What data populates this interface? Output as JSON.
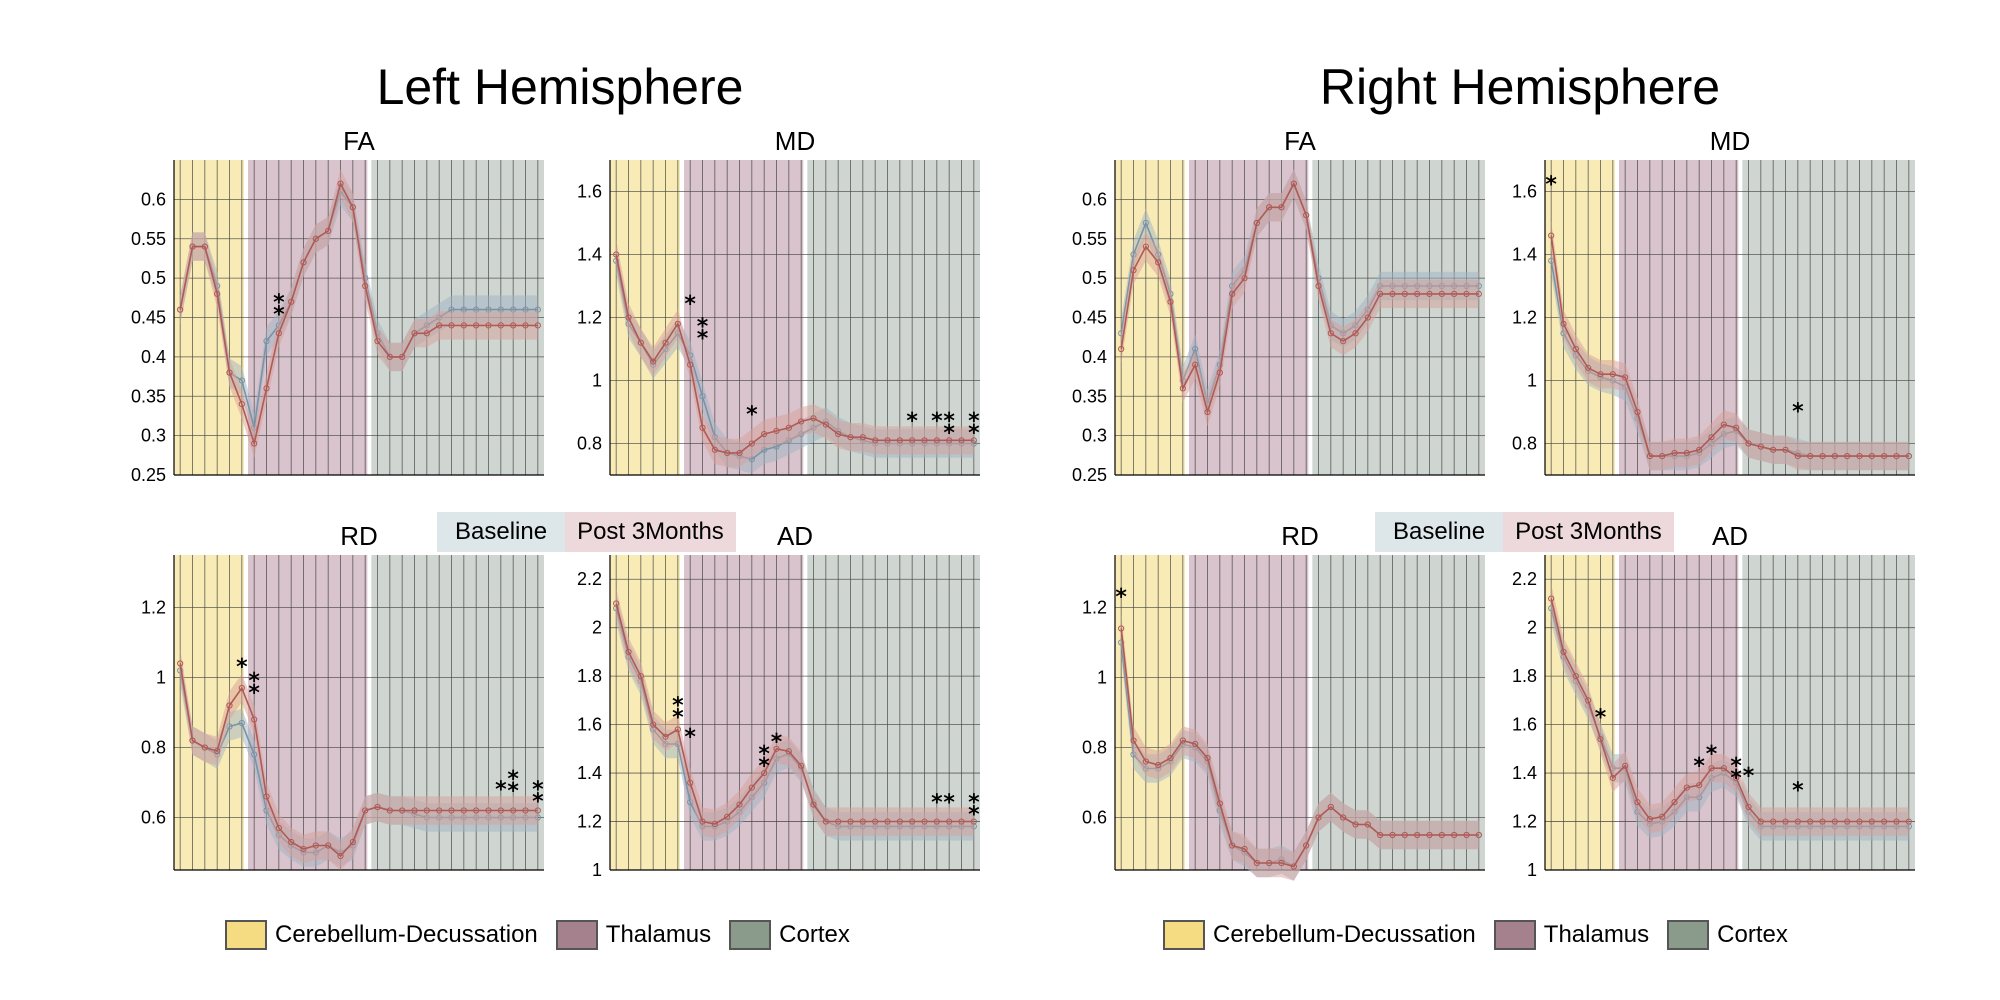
{
  "colors": {
    "cerebellum": "#f9ebb5",
    "thalamus": "#d9c3cd",
    "cortex": "#cfd6d1",
    "cerebellum_swatch": "#f5dc82",
    "thalamus_swatch": "#a4818d",
    "cortex_swatch": "#8a9a8b",
    "baseline_line": "#7a93a6",
    "baseline_band": "#9fb4c3",
    "post_line": "#b05a55",
    "post_band": "#d8a09a",
    "legend_baseline_bg": "#dde6e9",
    "legend_post_bg": "#edd9dc"
  },
  "hemispheres": [
    {
      "title": "Left Hemisphere"
    },
    {
      "title": "Right Hemisphere"
    }
  ],
  "series_legend": {
    "baseline": "Baseline",
    "post": "Post 3Months"
  },
  "region_legend": [
    "Cerebellum-Decussation",
    "Thalamus",
    "Cortex"
  ],
  "chart_data": [
    {
      "type": "line",
      "hemisphere": "Left Hemisphere",
      "title": "FA",
      "ylim": [
        0.25,
        0.65
      ],
      "yticks": [
        0.25,
        0.3,
        0.35,
        0.4,
        0.45,
        0.5,
        0.55,
        0.6
      ],
      "ytick_labels": [
        "0.25",
        "0.3",
        "0.35",
        "0.4",
        "0.45",
        "0.5",
        "0.55",
        "0.6"
      ],
      "n_points": 30,
      "regions": [
        [
          1,
          6
        ],
        [
          7,
          16
        ],
        [
          17,
          30
        ]
      ],
      "series": [
        {
          "name": "Baseline",
          "values": [
            0.46,
            0.54,
            0.54,
            0.49,
            0.38,
            0.37,
            0.31,
            0.42,
            0.44,
            0.47,
            0.52,
            0.55,
            0.56,
            0.61,
            0.59,
            0.5,
            0.43,
            0.4,
            0.4,
            0.43,
            0.44,
            0.45,
            0.46,
            0.46,
            0.46,
            0.46,
            0.46,
            0.46,
            0.46,
            0.46
          ]
        },
        {
          "name": "Post 3Months",
          "values": [
            0.46,
            0.54,
            0.54,
            0.48,
            0.38,
            0.34,
            0.29,
            0.36,
            0.43,
            0.47,
            0.52,
            0.55,
            0.56,
            0.62,
            0.59,
            0.49,
            0.42,
            0.4,
            0.4,
            0.43,
            0.43,
            0.44,
            0.44,
            0.44,
            0.44,
            0.44,
            0.44,
            0.44,
            0.44,
            0.44
          ]
        }
      ],
      "annotations": [
        {
          "x": 9,
          "y": 0.46,
          "text": "**"
        }
      ]
    },
    {
      "type": "line",
      "hemisphere": "Left Hemisphere",
      "title": "MD",
      "ylim": [
        0.7,
        1.7
      ],
      "yticks": [
        0.8,
        1.0,
        1.2,
        1.4,
        1.6
      ],
      "ytick_labels": [
        "0.8",
        "1",
        "1.2",
        "1.4",
        "1.6"
      ],
      "n_points": 30,
      "regions": [
        [
          1,
          6
        ],
        [
          7,
          16
        ],
        [
          17,
          30
        ]
      ],
      "series": [
        {
          "name": "Baseline",
          "values": [
            1.38,
            1.18,
            1.12,
            1.05,
            1.1,
            1.15,
            1.08,
            0.95,
            0.82,
            0.77,
            0.76,
            0.75,
            0.78,
            0.79,
            0.81,
            0.83,
            0.85,
            0.87,
            0.84,
            0.82,
            0.81,
            0.8,
            0.8,
            0.8,
            0.8,
            0.8,
            0.8,
            0.8,
            0.8,
            0.8
          ]
        },
        {
          "name": "Post 3Months",
          "values": [
            1.4,
            1.2,
            1.12,
            1.06,
            1.12,
            1.18,
            1.05,
            0.85,
            0.78,
            0.77,
            0.77,
            0.8,
            0.83,
            0.84,
            0.85,
            0.87,
            0.88,
            0.86,
            0.83,
            0.82,
            0.82,
            0.81,
            0.81,
            0.81,
            0.81,
            0.81,
            0.81,
            0.81,
            0.81,
            0.81
          ]
        }
      ],
      "annotations": [
        {
          "x": 7,
          "y": 1.22,
          "text": "*"
        },
        {
          "x": 8,
          "y": 1.15,
          "text": "**"
        },
        {
          "x": 12,
          "y": 0.87,
          "text": "*"
        },
        {
          "x": 25,
          "y": 0.85,
          "text": "*"
        },
        {
          "x": 27,
          "y": 0.85,
          "text": "*"
        },
        {
          "x": 28,
          "y": 0.85,
          "text": "**"
        },
        {
          "x": 30,
          "y": 0.85,
          "text": "**"
        }
      ]
    },
    {
      "type": "line",
      "hemisphere": "Left Hemisphere",
      "title": "RD",
      "ylim": [
        0.45,
        1.35
      ],
      "yticks": [
        0.6,
        0.8,
        1.0,
        1.2
      ],
      "ytick_labels": [
        "0.6",
        "0.8",
        "1",
        "1.2"
      ],
      "n_points": 30,
      "regions": [
        [
          1,
          6
        ],
        [
          7,
          16
        ],
        [
          17,
          30
        ]
      ],
      "series": [
        {
          "name": "Baseline",
          "values": [
            1.02,
            0.82,
            0.8,
            0.78,
            0.86,
            0.87,
            0.78,
            0.62,
            0.55,
            0.52,
            0.5,
            0.5,
            0.52,
            0.5,
            0.52,
            0.62,
            0.63,
            0.62,
            0.62,
            0.61,
            0.6,
            0.6,
            0.6,
            0.6,
            0.6,
            0.6,
            0.6,
            0.6,
            0.6,
            0.6
          ]
        },
        {
          "name": "Post 3Months",
          "values": [
            1.04,
            0.82,
            0.8,
            0.79,
            0.92,
            0.97,
            0.88,
            0.66,
            0.57,
            0.53,
            0.51,
            0.52,
            0.52,
            0.49,
            0.53,
            0.62,
            0.63,
            0.62,
            0.62,
            0.62,
            0.62,
            0.62,
            0.62,
            0.62,
            0.62,
            0.62,
            0.62,
            0.62,
            0.62,
            0.62
          ]
        }
      ],
      "annotations": [
        {
          "x": 6,
          "y": 1.01,
          "text": "*"
        },
        {
          "x": 7,
          "y": 0.97,
          "text": "**"
        },
        {
          "x": 27,
          "y": 0.66,
          "text": "*"
        },
        {
          "x": 28,
          "y": 0.69,
          "text": "**"
        },
        {
          "x": 30,
          "y": 0.66,
          "text": "**"
        }
      ]
    },
    {
      "type": "line",
      "hemisphere": "Left Hemisphere",
      "title": "AD",
      "ylim": [
        1.0,
        2.3
      ],
      "yticks": [
        1.0,
        1.2,
        1.4,
        1.6,
        1.8,
        2.0,
        2.2
      ],
      "ytick_labels": [
        "1",
        "1.2",
        "1.4",
        "1.6",
        "1.8",
        "2",
        "2.2"
      ],
      "n_points": 30,
      "regions": [
        [
          1,
          6
        ],
        [
          7,
          16
        ],
        [
          17,
          30
        ]
      ],
      "series": [
        {
          "name": "Baseline",
          "values": [
            2.08,
            1.88,
            1.78,
            1.58,
            1.52,
            1.52,
            1.28,
            1.18,
            1.18,
            1.2,
            1.24,
            1.3,
            1.36,
            1.46,
            1.48,
            1.42,
            1.28,
            1.2,
            1.18,
            1.18,
            1.18,
            1.18,
            1.18,
            1.18,
            1.18,
            1.18,
            1.18,
            1.18,
            1.18,
            1.18
          ]
        },
        {
          "name": "Post 3Months",
          "values": [
            2.1,
            1.9,
            1.8,
            1.6,
            1.55,
            1.58,
            1.36,
            1.2,
            1.19,
            1.22,
            1.27,
            1.34,
            1.4,
            1.5,
            1.49,
            1.43,
            1.27,
            1.2,
            1.2,
            1.2,
            1.2,
            1.2,
            1.2,
            1.2,
            1.2,
            1.2,
            1.2,
            1.2,
            1.2,
            1.2
          ]
        }
      ],
      "annotations": [
        {
          "x": 6,
          "y": 1.65,
          "text": "**"
        },
        {
          "x": 7,
          "y": 1.52,
          "text": "*"
        },
        {
          "x": 13,
          "y": 1.45,
          "text": "**"
        },
        {
          "x": 14,
          "y": 1.5,
          "text": "*"
        },
        {
          "x": 27,
          "y": 1.25,
          "text": "*"
        },
        {
          "x": 28,
          "y": 1.25,
          "text": "*"
        },
        {
          "x": 30,
          "y": 1.25,
          "text": "**"
        }
      ]
    },
    {
      "type": "line",
      "hemisphere": "Right Hemisphere",
      "title": "FA",
      "ylim": [
        0.25,
        0.65
      ],
      "yticks": [
        0.25,
        0.3,
        0.35,
        0.4,
        0.45,
        0.5,
        0.55,
        0.6
      ],
      "ytick_labels": [
        "0.25",
        "0.3",
        "0.35",
        "0.4",
        "0.45",
        "0.5",
        "0.55",
        "0.6"
      ],
      "n_points": 30,
      "regions": [
        [
          1,
          6
        ],
        [
          7,
          16
        ],
        [
          17,
          30
        ]
      ],
      "series": [
        {
          "name": "Baseline",
          "values": [
            0.43,
            0.53,
            0.57,
            0.53,
            0.48,
            0.37,
            0.41,
            0.34,
            0.39,
            0.49,
            0.51,
            0.57,
            0.59,
            0.59,
            0.62,
            0.58,
            0.5,
            0.44,
            0.43,
            0.44,
            0.46,
            0.49,
            0.49,
            0.49,
            0.49,
            0.49,
            0.49,
            0.49,
            0.49,
            0.49
          ]
        },
        {
          "name": "Post 3Months",
          "values": [
            0.41,
            0.51,
            0.54,
            0.52,
            0.47,
            0.36,
            0.39,
            0.33,
            0.38,
            0.48,
            0.5,
            0.57,
            0.59,
            0.59,
            0.62,
            0.58,
            0.49,
            0.43,
            0.42,
            0.43,
            0.45,
            0.48,
            0.48,
            0.48,
            0.48,
            0.48,
            0.48,
            0.48,
            0.48,
            0.48
          ]
        }
      ],
      "annotations": []
    },
    {
      "type": "line",
      "hemisphere": "Right Hemisphere",
      "title": "MD",
      "ylim": [
        0.7,
        1.7
      ],
      "yticks": [
        0.8,
        1.0,
        1.2,
        1.4,
        1.6
      ],
      "ytick_labels": [
        "0.8",
        "1",
        "1.2",
        "1.4",
        "1.6"
      ],
      "n_points": 30,
      "regions": [
        [
          1,
          6
        ],
        [
          7,
          16
        ],
        [
          17,
          30
        ]
      ],
      "series": [
        {
          "name": "Baseline",
          "values": [
            1.38,
            1.15,
            1.08,
            1.03,
            1.01,
            1.0,
            0.98,
            0.88,
            0.76,
            0.76,
            0.76,
            0.76,
            0.77,
            0.8,
            0.83,
            0.84,
            0.8,
            0.79,
            0.78,
            0.78,
            0.77,
            0.76,
            0.76,
            0.76,
            0.76,
            0.76,
            0.76,
            0.76,
            0.76,
            0.76
          ]
        },
        {
          "name": "Post 3Months",
          "values": [
            1.46,
            1.18,
            1.1,
            1.04,
            1.02,
            1.02,
            1.01,
            0.9,
            0.76,
            0.76,
            0.77,
            0.77,
            0.78,
            0.82,
            0.86,
            0.85,
            0.8,
            0.79,
            0.78,
            0.78,
            0.76,
            0.76,
            0.76,
            0.76,
            0.76,
            0.76,
            0.76,
            0.76,
            0.76,
            0.76
          ]
        }
      ],
      "annotations": [
        {
          "x": 1,
          "y": 1.6,
          "text": "*"
        },
        {
          "x": 21,
          "y": 0.88,
          "text": "*"
        }
      ]
    },
    {
      "type": "line",
      "hemisphere": "Right Hemisphere",
      "title": "RD",
      "ylim": [
        0.45,
        1.35
      ],
      "yticks": [
        0.6,
        0.8,
        1.0,
        1.2
      ],
      "ytick_labels": [
        "0.6",
        "0.8",
        "1",
        "1.2"
      ],
      "n_points": 30,
      "regions": [
        [
          1,
          6
        ],
        [
          7,
          16
        ],
        [
          17,
          30
        ]
      ],
      "series": [
        {
          "name": "Baseline",
          "values": [
            1.1,
            0.78,
            0.74,
            0.74,
            0.76,
            0.81,
            0.8,
            0.76,
            0.62,
            0.52,
            0.5,
            0.47,
            0.47,
            0.48,
            0.46,
            0.52,
            0.6,
            0.63,
            0.6,
            0.58,
            0.58,
            0.55,
            0.55,
            0.55,
            0.55,
            0.55,
            0.55,
            0.55,
            0.55,
            0.55
          ]
        },
        {
          "name": "Post 3Months",
          "values": [
            1.14,
            0.82,
            0.76,
            0.75,
            0.77,
            0.82,
            0.81,
            0.77,
            0.64,
            0.52,
            0.51,
            0.47,
            0.47,
            0.47,
            0.46,
            0.52,
            0.6,
            0.63,
            0.6,
            0.58,
            0.58,
            0.55,
            0.55,
            0.55,
            0.55,
            0.55,
            0.55,
            0.55,
            0.55,
            0.55
          ]
        }
      ],
      "annotations": [
        {
          "x": 1,
          "y": 1.21,
          "text": "*"
        }
      ]
    },
    {
      "type": "line",
      "hemisphere": "Right Hemisphere",
      "title": "AD",
      "ylim": [
        1.0,
        2.3
      ],
      "yticks": [
        1.0,
        1.2,
        1.4,
        1.6,
        1.8,
        2.0,
        2.2
      ],
      "ytick_labels": [
        "1",
        "1.2",
        "1.4",
        "1.6",
        "1.8",
        "2",
        "2.2"
      ],
      "n_points": 30,
      "regions": [
        [
          1,
          6
        ],
        [
          7,
          16
        ],
        [
          17,
          30
        ]
      ],
      "series": [
        {
          "name": "Baseline",
          "values": [
            2.08,
            1.88,
            1.78,
            1.68,
            1.55,
            1.42,
            1.42,
            1.24,
            1.19,
            1.2,
            1.24,
            1.3,
            1.3,
            1.38,
            1.4,
            1.36,
            1.24,
            1.18,
            1.18,
            1.18,
            1.18,
            1.18,
            1.18,
            1.18,
            1.18,
            1.18,
            1.18,
            1.18,
            1.18,
            1.18
          ]
        },
        {
          "name": "Post 3Months",
          "values": [
            2.12,
            1.9,
            1.8,
            1.7,
            1.54,
            1.38,
            1.43,
            1.28,
            1.21,
            1.22,
            1.28,
            1.34,
            1.35,
            1.42,
            1.42,
            1.38,
            1.26,
            1.2,
            1.2,
            1.2,
            1.2,
            1.2,
            1.2,
            1.2,
            1.2,
            1.2,
            1.2,
            1.2,
            1.2,
            1.2
          ]
        }
      ],
      "annotations": [
        {
          "x": 5,
          "y": 1.6,
          "text": "*"
        },
        {
          "x": 13,
          "y": 1.4,
          "text": "*"
        },
        {
          "x": 14,
          "y": 1.45,
          "text": "*"
        },
        {
          "x": 16,
          "y": 1.4,
          "text": "**"
        },
        {
          "x": 17,
          "y": 1.36,
          "text": "*"
        },
        {
          "x": 21,
          "y": 1.3,
          "text": "*"
        }
      ]
    }
  ]
}
